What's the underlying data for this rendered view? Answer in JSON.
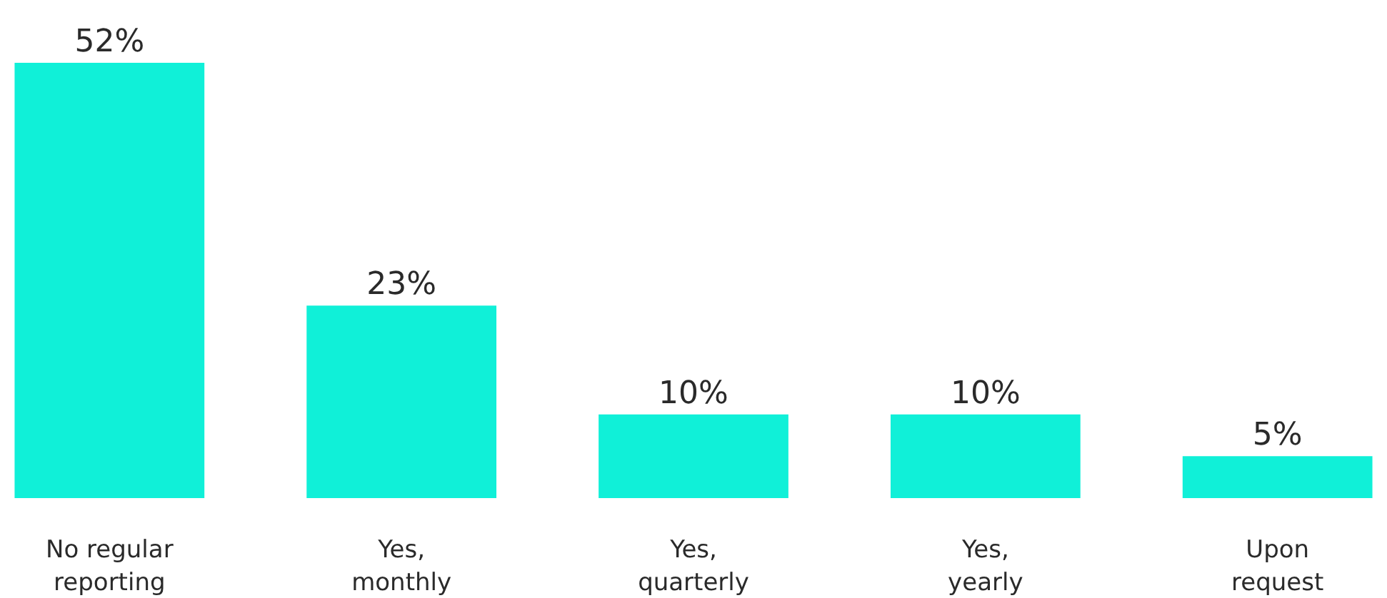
{
  "chart_data": {
    "type": "bar",
    "categories": [
      "No regular\nreporting",
      "Yes,\nmonthly",
      "Yes,\nquarterly",
      "Yes,\nyearly",
      "Upon\nrequest"
    ],
    "values": [
      52,
      23,
      10,
      10,
      5
    ],
    "value_labels": [
      "52%",
      "23%",
      "10%",
      "10%",
      "5%"
    ],
    "color": "#10f0d8"
  }
}
